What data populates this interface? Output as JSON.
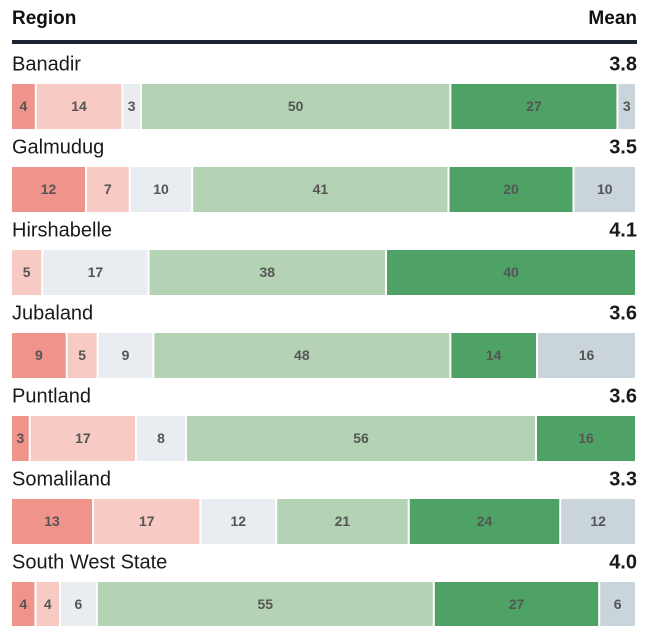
{
  "chart_data": {
    "type": "stacked-bar-horizontal",
    "column_headers": [
      "Region",
      "Mean"
    ],
    "categories": [
      "Banadir",
      "Galmudug",
      "Hirshabelle",
      "Jubaland",
      "Puntland",
      "Somaliland",
      "South West State"
    ],
    "series": [
      {
        "color": "#f0938b",
        "values": [
          4,
          12,
          null,
          9,
          3,
          13,
          4
        ]
      },
      {
        "color": "#f8cac4",
        "values": [
          14,
          7,
          5,
          5,
          17,
          17,
          4
        ]
      },
      {
        "color": "#e9ecf1",
        "values": [
          3,
          10,
          17,
          9,
          8,
          12,
          6
        ]
      },
      {
        "color": "#b3d3b4",
        "values": [
          50,
          41,
          38,
          48,
          56,
          21,
          55
        ]
      },
      {
        "color": "#4fa265",
        "values": [
          27,
          20,
          40,
          14,
          16,
          24,
          27
        ]
      },
      {
        "color": "#c9d4db",
        "values": [
          3,
          10,
          null,
          16,
          null,
          12,
          6
        ]
      }
    ],
    "means": {
      "values": [
        3.8,
        3.5,
        4.1,
        3.6,
        3.6,
        3.3,
        4.0
      ],
      "value_labels": [
        "3.8",
        "3.5",
        "4.1",
        "3.6",
        "3.6",
        "3.3",
        "4.0"
      ]
    }
  }
}
